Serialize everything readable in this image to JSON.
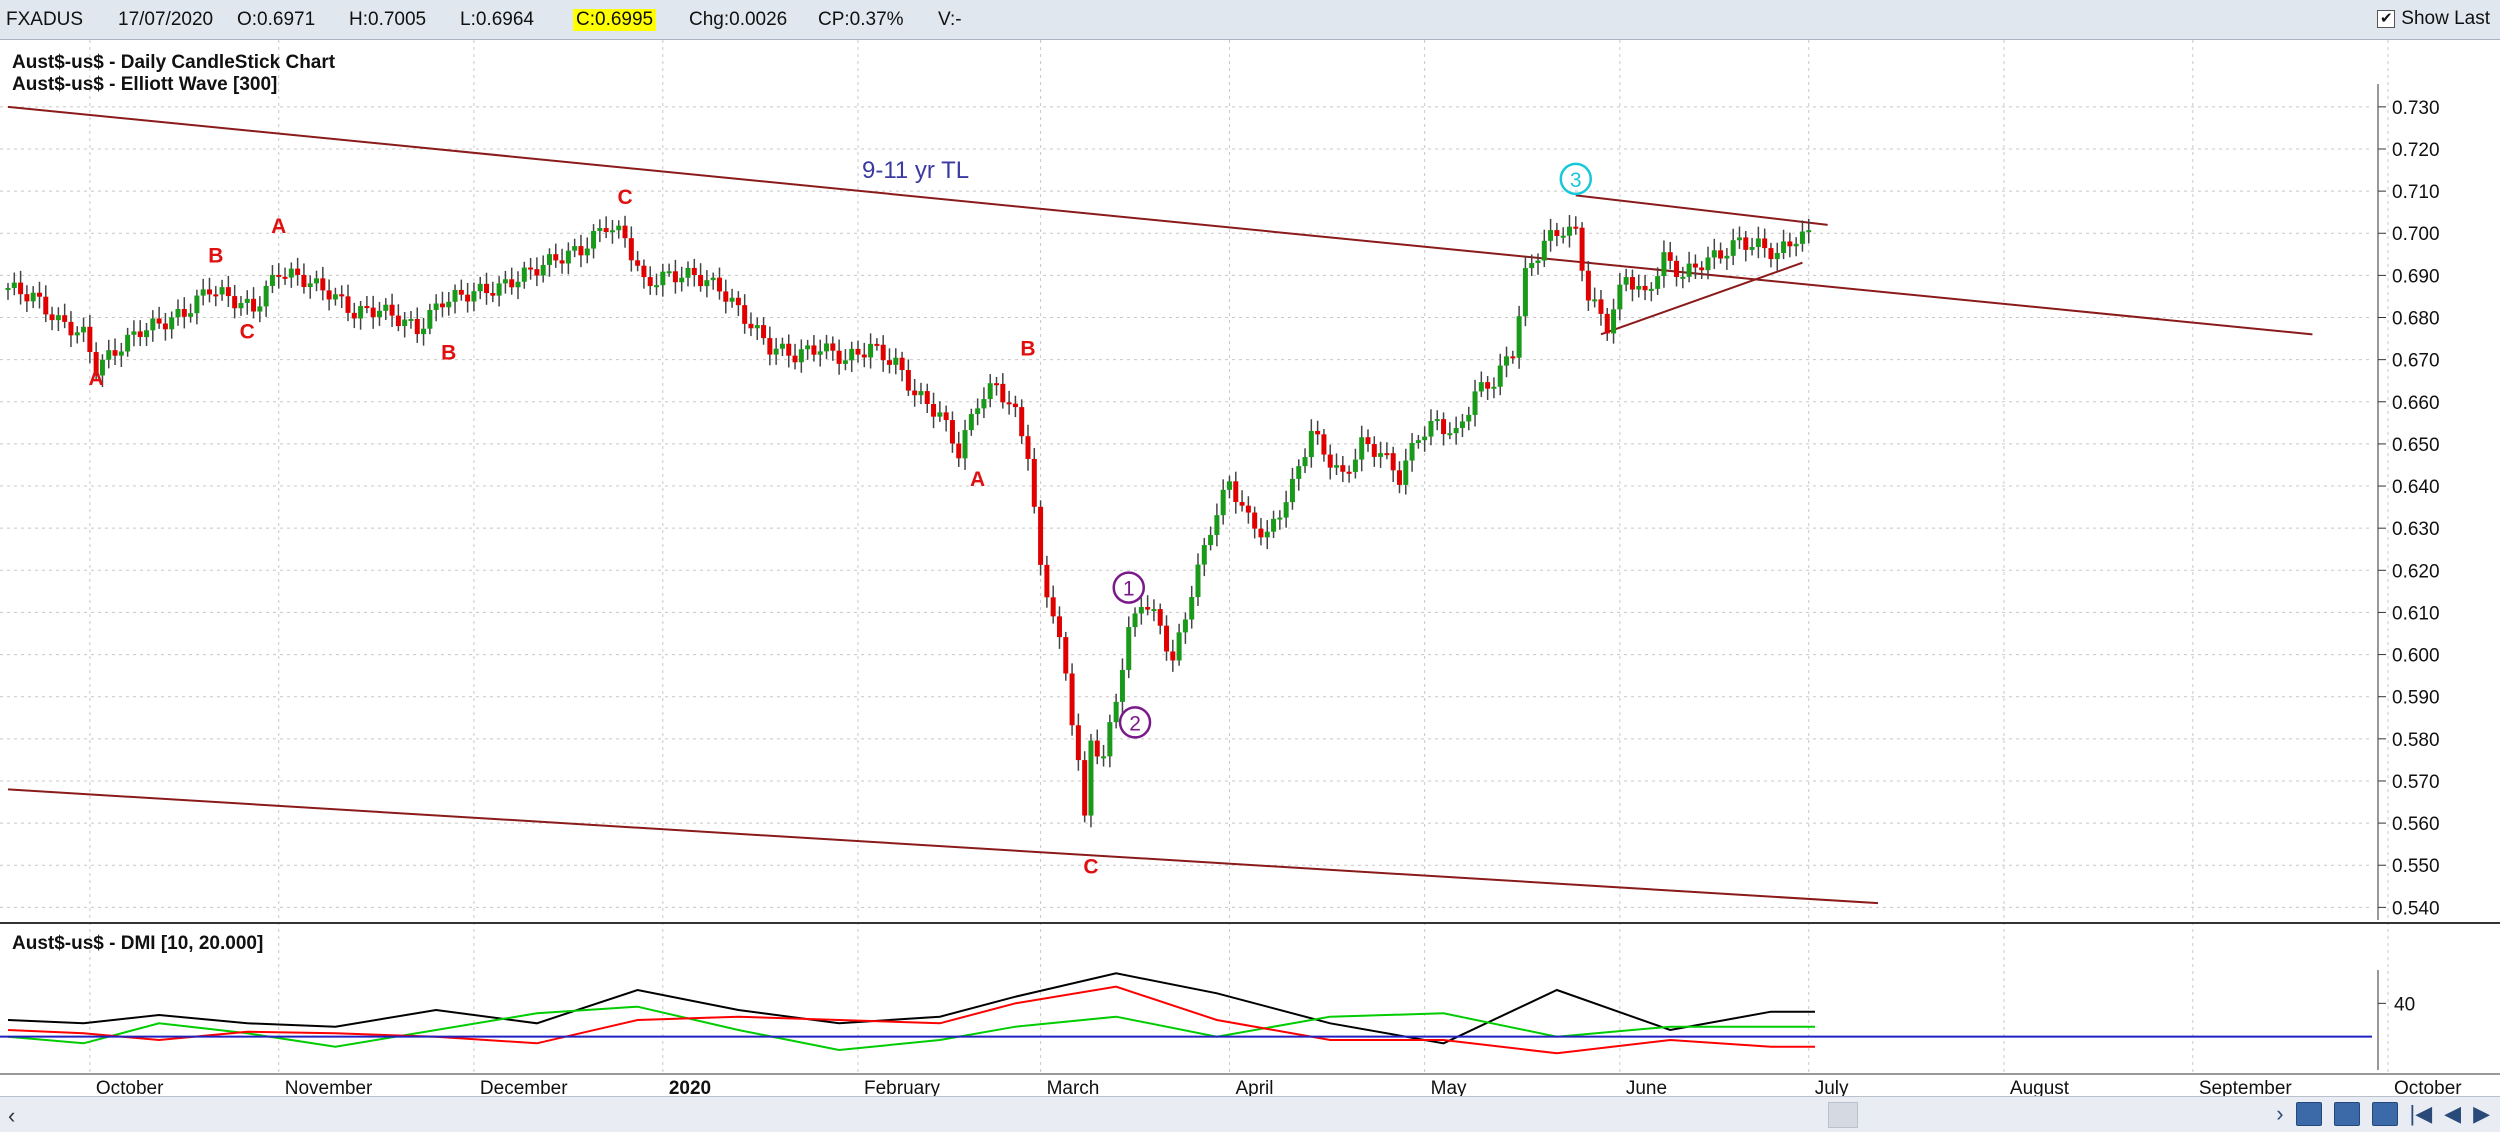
{
  "header": {
    "symbol": "FXADUS",
    "date": "17/07/2020",
    "open": "O:0.6971",
    "high": "H:0.7005",
    "low": "L:0.6964",
    "close": "C:0.6995",
    "change": "Chg:0.0026",
    "change_pct": "CP:0.37%",
    "volume": "V:-",
    "show_last_label": "Show Last",
    "show_last_checked": "✔"
  },
  "chart_data": [
    {
      "type": "candlestick",
      "title": "Aust$-us$ - Daily CandleStick Chart",
      "subtitle": "Aust$-us$ - Elliott Wave [300]",
      "ylim": [
        0.537,
        0.734
      ],
      "y_ticks": [
        "0.730",
        "0.720",
        "0.710",
        "0.700",
        "0.690",
        "0.680",
        "0.670",
        "0.660",
        "0.650",
        "0.640",
        "0.630",
        "0.620",
        "0.610",
        "0.600",
        "0.590",
        "0.580",
        "0.570",
        "0.560",
        "0.550",
        "0.540"
      ],
      "x_labels": [
        "October",
        "November",
        "December",
        "2020",
        "February",
        "March",
        "April",
        "May",
        "June",
        "July",
        "August",
        "September",
        "October"
      ],
      "grid": true,
      "up_color": "#1a9a1a",
      "down_color": "#e00000",
      "closes": [
        {
          "t": 0,
          "c": 0.687
        },
        {
          "t": 4,
          "c": 0.685
        },
        {
          "t": 8,
          "c": 0.679
        },
        {
          "t": 12,
          "c": 0.676
        },
        {
          "t": 14,
          "c": 0.668
        },
        {
          "t": 17,
          "c": 0.672
        },
        {
          "t": 21,
          "c": 0.677
        },
        {
          "t": 25,
          "c": 0.679
        },
        {
          "t": 28,
          "c": 0.681
        },
        {
          "t": 32,
          "c": 0.687
        },
        {
          "t": 36,
          "c": 0.684
        },
        {
          "t": 39,
          "c": 0.682
        },
        {
          "t": 43,
          "c": 0.691
        },
        {
          "t": 47,
          "c": 0.689
        },
        {
          "t": 51,
          "c": 0.686
        },
        {
          "t": 55,
          "c": 0.681
        },
        {
          "t": 59,
          "c": 0.682
        },
        {
          "t": 63,
          "c": 0.679
        },
        {
          "t": 65,
          "c": 0.677
        },
        {
          "t": 69,
          "c": 0.684
        },
        {
          "t": 74,
          "c": 0.686
        },
        {
          "t": 78,
          "c": 0.687
        },
        {
          "t": 83,
          "c": 0.691
        },
        {
          "t": 87,
          "c": 0.694
        },
        {
          "t": 91,
          "c": 0.696
        },
        {
          "t": 95,
          "c": 0.702
        },
        {
          "t": 98,
          "c": 0.699
        },
        {
          "t": 101,
          "c": 0.688
        },
        {
          "t": 105,
          "c": 0.69
        },
        {
          "t": 109,
          "c": 0.69
        },
        {
          "t": 113,
          "c": 0.687
        },
        {
          "t": 117,
          "c": 0.68
        },
        {
          "t": 121,
          "c": 0.673
        },
        {
          "t": 125,
          "c": 0.671
        },
        {
          "t": 129,
          "c": 0.673
        },
        {
          "t": 133,
          "c": 0.67
        },
        {
          "t": 137,
          "c": 0.673
        },
        {
          "t": 141,
          "c": 0.669
        },
        {
          "t": 144,
          "c": 0.662
        },
        {
          "t": 148,
          "c": 0.657
        },
        {
          "t": 151,
          "c": 0.648
        },
        {
          "t": 154,
          "c": 0.66
        },
        {
          "t": 157,
          "c": 0.664
        },
        {
          "t": 160,
          "c": 0.657
        },
        {
          "t": 162,
          "c": 0.648
        },
        {
          "t": 164,
          "c": 0.62
        },
        {
          "t": 166,
          "c": 0.61
        },
        {
          "t": 168,
          "c": 0.595
        },
        {
          "t": 170,
          "c": 0.575
        },
        {
          "t": 171,
          "c": 0.56
        },
        {
          "t": 172,
          "c": 0.58
        },
        {
          "t": 174,
          "c": 0.575
        },
        {
          "t": 176,
          "c": 0.59
        },
        {
          "t": 178,
          "c": 0.605
        },
        {
          "t": 180,
          "c": 0.613
        },
        {
          "t": 183,
          "c": 0.607
        },
        {
          "t": 185,
          "c": 0.598
        },
        {
          "t": 188,
          "c": 0.615
        },
        {
          "t": 191,
          "c": 0.63
        },
        {
          "t": 194,
          "c": 0.641
        },
        {
          "t": 197,
          "c": 0.632
        },
        {
          "t": 200,
          "c": 0.628
        },
        {
          "t": 204,
          "c": 0.64
        },
        {
          "t": 207,
          "c": 0.653
        },
        {
          "t": 209,
          "c": 0.648
        },
        {
          "t": 212,
          "c": 0.642
        },
        {
          "t": 215,
          "c": 0.65
        },
        {
          "t": 218,
          "c": 0.648
        },
        {
          "t": 221,
          "c": 0.642
        },
        {
          "t": 224,
          "c": 0.652
        },
        {
          "t": 227,
          "c": 0.655
        },
        {
          "t": 230,
          "c": 0.652
        },
        {
          "t": 233,
          "c": 0.662
        },
        {
          "t": 236,
          "c": 0.665
        },
        {
          "t": 239,
          "c": 0.672
        },
        {
          "t": 241,
          "c": 0.69
        },
        {
          "t": 244,
          "c": 0.698
        },
        {
          "t": 247,
          "c": 0.701
        },
        {
          "t": 249,
          "c": 0.7
        },
        {
          "t": 251,
          "c": 0.685
        },
        {
          "t": 254,
          "c": 0.678
        },
        {
          "t": 257,
          "c": 0.69
        },
        {
          "t": 260,
          "c": 0.685
        },
        {
          "t": 263,
          "c": 0.694
        },
        {
          "t": 266,
          "c": 0.69
        },
        {
          "t": 269,
          "c": 0.693
        },
        {
          "t": 272,
          "c": 0.695
        },
        {
          "t": 275,
          "c": 0.698
        },
        {
          "t": 278,
          "c": 0.697
        },
        {
          "t": 281,
          "c": 0.695
        },
        {
          "t": 284,
          "c": 0.699
        },
        {
          "t": 286,
          "c": 0.6995
        }
      ],
      "wave_labels": [
        {
          "label": "A",
          "t": 14,
          "v": 0.664,
          "style": "red"
        },
        {
          "label": "B",
          "t": 33,
          "v": 0.693,
          "style": "red"
        },
        {
          "label": "C",
          "t": 38,
          "v": 0.675,
          "style": "red"
        },
        {
          "label": "A",
          "t": 43,
          "v": 0.7,
          "style": "red"
        },
        {
          "label": "B",
          "t": 70,
          "v": 0.67,
          "style": "red"
        },
        {
          "label": "C",
          "t": 98,
          "v": 0.707,
          "style": "red"
        },
        {
          "label": "A",
          "t": 154,
          "v": 0.64,
          "style": "red"
        },
        {
          "label": "B",
          "t": 162,
          "v": 0.671,
          "style": "red"
        },
        {
          "label": "C",
          "t": 172,
          "v": 0.548,
          "style": "red"
        },
        {
          "label": "1",
          "t": 178,
          "v": 0.614,
          "style": "purple-circle"
        },
        {
          "label": "2",
          "t": 179,
          "v": 0.582,
          "style": "purple-circle"
        },
        {
          "label": "3",
          "t": 249,
          "v": 0.711,
          "style": "cyan-circle"
        }
      ],
      "annotation": {
        "text": "9-11 yr TL",
        "t": 143,
        "v": 0.71
      },
      "trendlines": [
        {
          "t1": 0,
          "v1": 0.73,
          "t2": 366,
          "v2": 0.676
        },
        {
          "t1": 0,
          "v1": 0.568,
          "t2": 297,
          "v2": 0.541
        },
        {
          "t1": 249,
          "v1": 0.709,
          "t2": 289,
          "v2": 0.702
        },
        {
          "t1": 253,
          "v1": 0.676,
          "t2": 285,
          "v2": 0.693
        }
      ]
    },
    {
      "type": "line",
      "title": "Aust$-us$ - DMI [10, 20.000]",
      "y_ticks": [
        "40"
      ],
      "ylim": [
        0,
        60
      ],
      "threshold": 20,
      "series": [
        {
          "color": "#000000",
          "points": [
            [
              0,
              30
            ],
            [
              12,
              28
            ],
            [
              24,
              33
            ],
            [
              38,
              28
            ],
            [
              52,
              26
            ],
            [
              68,
              36
            ],
            [
              84,
              28
            ],
            [
              100,
              48
            ],
            [
              116,
              36
            ],
            [
              132,
              28
            ],
            [
              148,
              32
            ],
            [
              160,
              44
            ],
            [
              176,
              58
            ],
            [
              192,
              46
            ],
            [
              210,
              28
            ],
            [
              228,
              16
            ],
            [
              246,
              48
            ],
            [
              264,
              24
            ],
            [
              280,
              35
            ],
            [
              287,
              35
            ]
          ]
        },
        {
          "color": "#00cc00",
          "points": [
            [
              0,
              20
            ],
            [
              12,
              16
            ],
            [
              24,
              28
            ],
            [
              38,
              22
            ],
            [
              52,
              14
            ],
            [
              68,
              24
            ],
            [
              84,
              34
            ],
            [
              100,
              38
            ],
            [
              116,
              24
            ],
            [
              132,
              12
            ],
            [
              148,
              18
            ],
            [
              160,
              26
            ],
            [
              176,
              32
            ],
            [
              192,
              20
            ],
            [
              210,
              32
            ],
            [
              228,
              34
            ],
            [
              246,
              20
            ],
            [
              264,
              26
            ],
            [
              280,
              26
            ],
            [
              287,
              26
            ]
          ]
        },
        {
          "color": "#ff0000",
          "points": [
            [
              0,
              24
            ],
            [
              12,
              22
            ],
            [
              24,
              18
            ],
            [
              38,
              23
            ],
            [
              52,
              22
            ],
            [
              68,
              20
            ],
            [
              84,
              16
            ],
            [
              100,
              30
            ],
            [
              116,
              32
            ],
            [
              132,
              30
            ],
            [
              148,
              28
            ],
            [
              160,
              40
            ],
            [
              176,
              50
            ],
            [
              192,
              30
            ],
            [
              210,
              18
            ],
            [
              228,
              18
            ],
            [
              246,
              10
            ],
            [
              264,
              18
            ],
            [
              280,
              14
            ],
            [
              287,
              14
            ]
          ]
        }
      ]
    }
  ],
  "scroll": {
    "left_arrow": "‹",
    "right_arrow": "›",
    "first": "|◀",
    "prev": "◀",
    "next": "▶"
  }
}
